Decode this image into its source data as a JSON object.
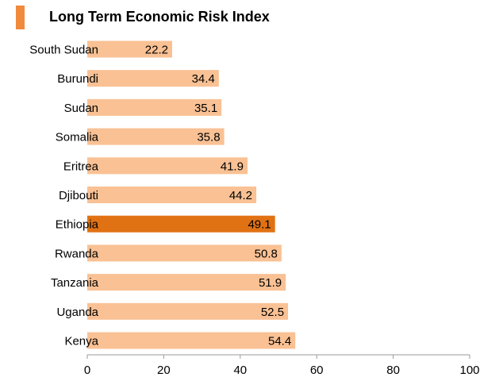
{
  "colors": {
    "bar": "#f9c194",
    "highlight": "#e07214",
    "axis": "#9a9a9a",
    "text": "#000000",
    "marker": "#f08a3c"
  },
  "highlight_category": "Ethiopia",
  "chart_data": {
    "type": "bar",
    "orientation": "horizontal",
    "title": "Long Term Economic Risk Index",
    "categories": [
      "South Sudan",
      "Burundi",
      "Sudan",
      "Somalia",
      "Eritrea",
      "Djibouti",
      "Ethiopia",
      "Rwanda",
      "Tanzania",
      "Uganda",
      "Kenya"
    ],
    "values": [
      22.2,
      34.4,
      35.1,
      35.8,
      41.9,
      44.2,
      49.1,
      50.8,
      51.9,
      52.5,
      54.4
    ],
    "value_labels": [
      "22.2",
      "34.4",
      "35.1",
      "35.8",
      "41.9",
      "44.2",
      "49.1",
      "50.8",
      "51.9",
      "52.5",
      "54.4"
    ],
    "xlim": [
      0,
      100
    ],
    "xticks": [
      0,
      20,
      40,
      60,
      80,
      100
    ],
    "xtick_labels": [
      "0",
      "20",
      "40",
      "60",
      "80",
      "100"
    ],
    "xlabel": "",
    "ylabel": "",
    "grid": false
  }
}
